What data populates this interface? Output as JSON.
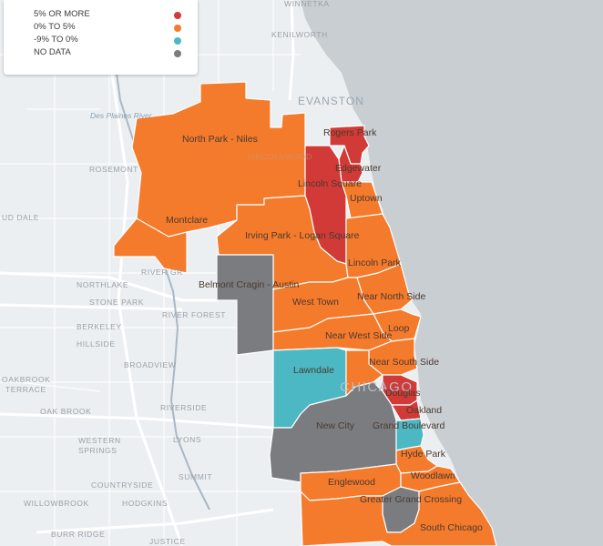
{
  "legend": {
    "items": [
      {
        "label": "5% OR MORE",
        "color": "#d13a37"
      },
      {
        "label": "0% TO 5%",
        "color": "#f47a2c"
      },
      {
        "label": "-9% TO 0%",
        "color": "#4cb8c4"
      },
      {
        "label": "NO DATA",
        "color": "#7b7c80"
      }
    ]
  },
  "towns": {
    "winnetka": "WINNETKA",
    "kenilworth": "KENILWORTH",
    "evanston": "EVANSTON",
    "rosemont": "ROSEMONT",
    "oud_dale": "UD DALE",
    "river_grove": "RIVER GR",
    "northlake": "NORTHLAKE",
    "stone_park": "STONE PARK",
    "river_forest": "RIVER FOREST",
    "berkeley": "BERKELEY",
    "hillside": "HILLSIDE",
    "broadview": "BROADVIEW",
    "oakbrook_terrace_1": "OAKBROOK",
    "oakbrook_terrace_2": "TERRACE",
    "oak_brook": "OAK BROOK",
    "riverside": "RIVERSIDE",
    "western_springs_1": "WESTERN",
    "western_springs_2": "SPRINGS",
    "lyons": "LYONS",
    "countryside": "COUNTRYSIDE",
    "summit": "SUMMIT",
    "willowbrook": "WILLOWBROOK",
    "hodgkins": "HODGKINS",
    "burr_ridge": "BURR RIDGE",
    "justice": "JUSTICE",
    "chicago": "CHICAGO",
    "lincolnwood": "LINCOLNWOOD"
  },
  "river_label": "Des Plaines River",
  "regions": [
    {
      "key": "north_park_niles",
      "name": "North Park - Niles",
      "category": "0% TO 5%"
    },
    {
      "key": "rogers_park",
      "name": "Rogers Park",
      "category": "5% OR MORE"
    },
    {
      "key": "edgewater",
      "name": "Edgewater",
      "category": "5% OR MORE"
    },
    {
      "key": "lincoln_square",
      "name": "Lincoln Square",
      "category": "5% OR MORE"
    },
    {
      "key": "uptown",
      "name": "Uptown",
      "category": "0% TO 5%"
    },
    {
      "key": "montclare",
      "name": "Montclare",
      "category": "0% TO 5%"
    },
    {
      "key": "irving_park",
      "name": "Irving Park - Logan Square",
      "category": "0% TO 5%"
    },
    {
      "key": "lincoln_park",
      "name": "Lincoln Park",
      "category": "0% TO 5%"
    },
    {
      "key": "belmont_cragin",
      "name": "Belmont Cragin - Austin",
      "category": "NO DATA"
    },
    {
      "key": "west_town",
      "name": "West Town",
      "category": "0% TO 5%"
    },
    {
      "key": "near_north_side",
      "name": "Near North Side",
      "category": "0% TO 5%"
    },
    {
      "key": "loop",
      "name": "Loop",
      "category": "0% TO 5%"
    },
    {
      "key": "near_west_side",
      "name": "Near West Side",
      "category": "0% TO 5%"
    },
    {
      "key": "near_south_side",
      "name": "Near South Side",
      "category": "0% TO 5%"
    },
    {
      "key": "lawndale",
      "name": "Lawndale",
      "category": "-9% TO 0%"
    },
    {
      "key": "douglas",
      "name": "Douglas",
      "category": "5% OR MORE"
    },
    {
      "key": "oakland",
      "name": "Oakland",
      "category": "5% OR MORE"
    },
    {
      "key": "new_city",
      "name": "New City",
      "category": "NO DATA"
    },
    {
      "key": "grand_boulevard",
      "name": "Grand Boulevard",
      "category": "-9% TO 0%"
    },
    {
      "key": "hyde_park",
      "name": "Hyde Park",
      "category": "0% TO 5%"
    },
    {
      "key": "englewood",
      "name": "Englewood",
      "category": "0% TO 5%"
    },
    {
      "key": "woodlawn",
      "name": "Woodlawn",
      "category": "0% TO 5%"
    },
    {
      "key": "greater_grand_crossing",
      "name": "Greater Grand Crossing",
      "category": "NO DATA"
    },
    {
      "key": "south_chicago",
      "name": "South Chicago",
      "category": "0% TO 5%"
    }
  ]
}
